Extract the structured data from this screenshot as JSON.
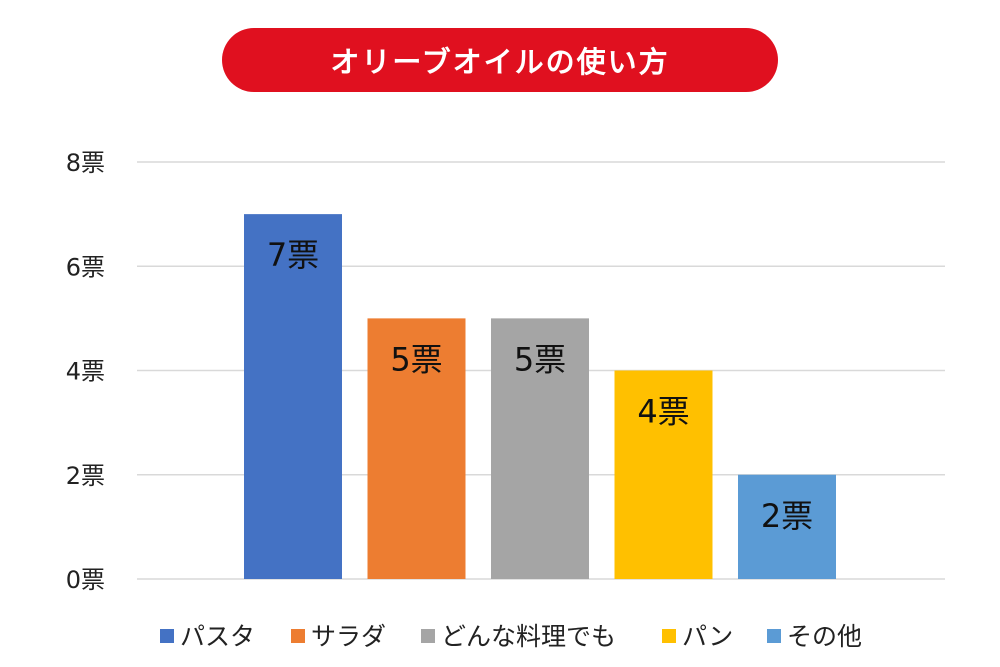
{
  "chart_data": {
    "type": "bar",
    "title": "オリーブオイルの使い方",
    "categories": [
      "パスタ",
      "サラダ",
      "どんな料理でも",
      "パン",
      "その他"
    ],
    "values": [
      7,
      5,
      5,
      4,
      2
    ],
    "data_labels": [
      "7票",
      "5票",
      "5票",
      "4票",
      "2票"
    ],
    "colors": [
      "#4472c4",
      "#ed7d31",
      "#a5a5a5",
      "#ffc000",
      "#5b9bd5"
    ],
    "ylim": [
      0,
      8
    ],
    "yticks": [
      0,
      2,
      4,
      6,
      8
    ],
    "ytick_labels": [
      "0票",
      "2票",
      "4票",
      "6票",
      "8票"
    ],
    "xlabel": "",
    "ylabel": "",
    "grid": true,
    "legend_position": "bottom",
    "title_color": "#e0101f"
  }
}
